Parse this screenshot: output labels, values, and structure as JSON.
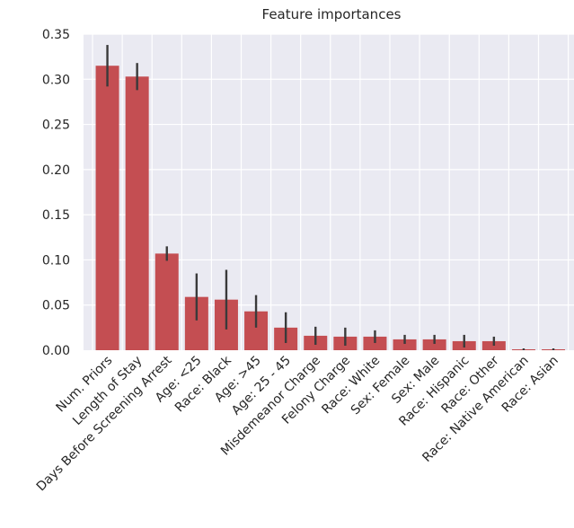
{
  "chart_data": {
    "type": "bar",
    "title": "Feature importances",
    "xlabel": "",
    "ylabel": "",
    "ylim": [
      0,
      0.35
    ],
    "yticks": [
      "0.00",
      "0.05",
      "0.10",
      "0.15",
      "0.20",
      "0.25",
      "0.30",
      "0.35"
    ],
    "grid": true,
    "legend": "none",
    "bar_color": "#c44e52",
    "error_color": "#3a3a3a",
    "background_color": "#eaeaf2",
    "categories": [
      "Num. Priors",
      "Length of Stay",
      "Days Before Screening Arrest",
      "Age: <25",
      "Race: Black",
      "Age: >45",
      "Age: 25 - 45",
      "Misdemeanor Charge",
      "Felony Charge",
      "Race: White",
      "Sex: Female",
      "Sex: Male",
      "Race: Hispanic",
      "Race: Other",
      "Race: Native American",
      "Race: Asian"
    ],
    "values": [
      0.315,
      0.303,
      0.107,
      0.059,
      0.056,
      0.043,
      0.025,
      0.016,
      0.015,
      0.015,
      0.012,
      0.012,
      0.01,
      0.01,
      0.001,
      0.001
    ],
    "error": [
      0.023,
      0.015,
      0.008,
      0.026,
      0.033,
      0.018,
      0.017,
      0.01,
      0.01,
      0.007,
      0.005,
      0.005,
      0.007,
      0.005,
      0.001,
      0.001
    ]
  }
}
